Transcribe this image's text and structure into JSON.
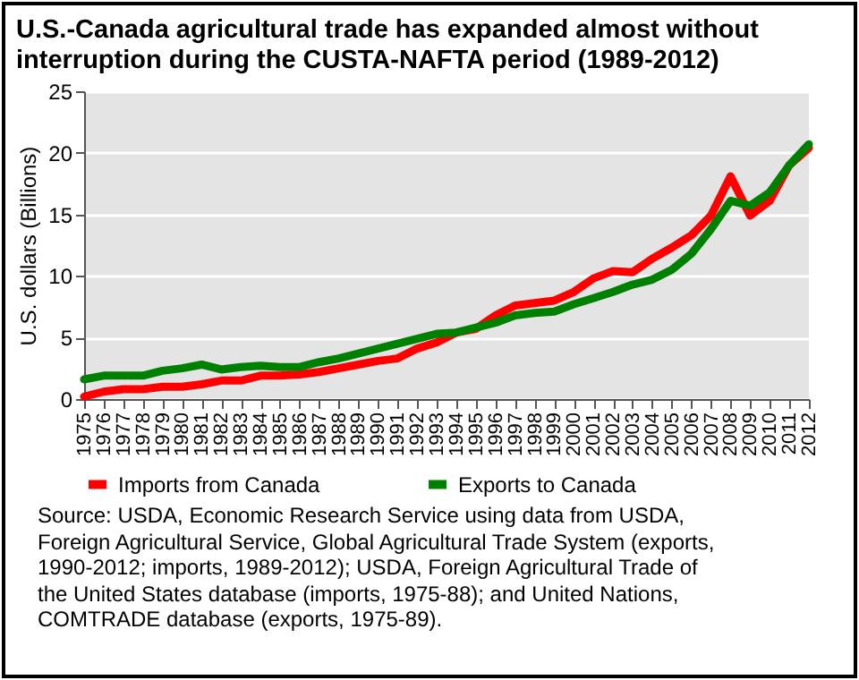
{
  "chart_data": {
    "type": "line",
    "title": "U.S.-Canada agricultural trade has expanded almost without interruption during the CUSTA-NAFTA period (1989-2012)",
    "ylabel": "U.S. dollars (Billions)",
    "categories": [
      "1975",
      "1976",
      "1977",
      "1978",
      "1979",
      "1980",
      "1981",
      "1982",
      "1983",
      "1984",
      "1985",
      "1986",
      "1987",
      "1988",
      "1989",
      "1990",
      "1991",
      "1992",
      "1993",
      "1994",
      "1995",
      "1996",
      "1997",
      "1998",
      "1999",
      "2000",
      "2001",
      "2002",
      "2003",
      "2004",
      "2005",
      "2006",
      "2007",
      "2008",
      "2009",
      "2010",
      "2011",
      "2012"
    ],
    "series": [
      {
        "name": "Imports from Canada",
        "color": "#ff0000",
        "values": [
          0.2,
          0.6,
          0.8,
          0.8,
          1.0,
          1.0,
          1.2,
          1.5,
          1.5,
          1.9,
          1.9,
          2.0,
          2.2,
          2.5,
          2.8,
          3.1,
          3.3,
          4.1,
          4.6,
          5.4,
          5.7,
          6.8,
          7.6,
          7.8,
          8.0,
          8.7,
          9.8,
          10.4,
          10.3,
          11.4,
          12.3,
          13.3,
          14.9,
          18.1,
          14.9,
          16.1,
          19.0,
          20.4
        ]
      },
      {
        "name": "Exports to Canada",
        "color": "#008000",
        "values": [
          1.6,
          1.9,
          1.9,
          1.9,
          2.3,
          2.5,
          2.8,
          2.4,
          2.6,
          2.7,
          2.6,
          2.6,
          3.0,
          3.3,
          3.7,
          4.1,
          4.5,
          4.9,
          5.3,
          5.4,
          5.8,
          6.2,
          6.8,
          7.0,
          7.1,
          7.7,
          8.2,
          8.7,
          9.3,
          9.7,
          10.5,
          11.8,
          13.8,
          16.1,
          15.7,
          16.8,
          19.0,
          20.7
        ]
      }
    ],
    "ylim": [
      0,
      25
    ],
    "yticks": [
      0,
      5,
      10,
      15,
      20,
      25
    ],
    "grid": "y",
    "legend": "bottom",
    "annotations": [
      "Source: USDA, Economic Research Service using data from USDA, Foreign Agricultural Service, Global Agricultural Trade System (exports, 1990-2012; imports, 1989-2012); USDA, Foreign Agricultural Trade of the United States database (imports, 1975-88); and United Nations, COMTRADE database (exports, 1975-89)."
    ]
  }
}
